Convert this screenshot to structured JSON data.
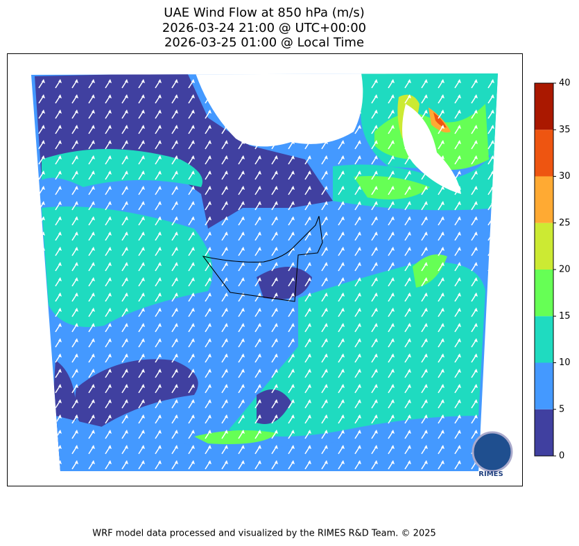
{
  "title": [
    "UAE Wind Flow at 850 hPa (m/s)",
    "2026-03-24 21:00 @ UTC+00:00",
    "2026-03-25 01:00 @ Local Time"
  ],
  "colorbar": {
    "levels": [
      0,
      5,
      10,
      15,
      20,
      25,
      30,
      35,
      40
    ],
    "colors": [
      "#4040a0",
      "#4499ff",
      "#1fdbc0",
      "#66ff55",
      "#ccea33",
      "#ffaa33",
      "#ee5511",
      "#aa1800"
    ]
  },
  "logo": "RIMES",
  "footer": "WRF model data processed and visualized by the RIMES R&D Team. © 2025"
}
